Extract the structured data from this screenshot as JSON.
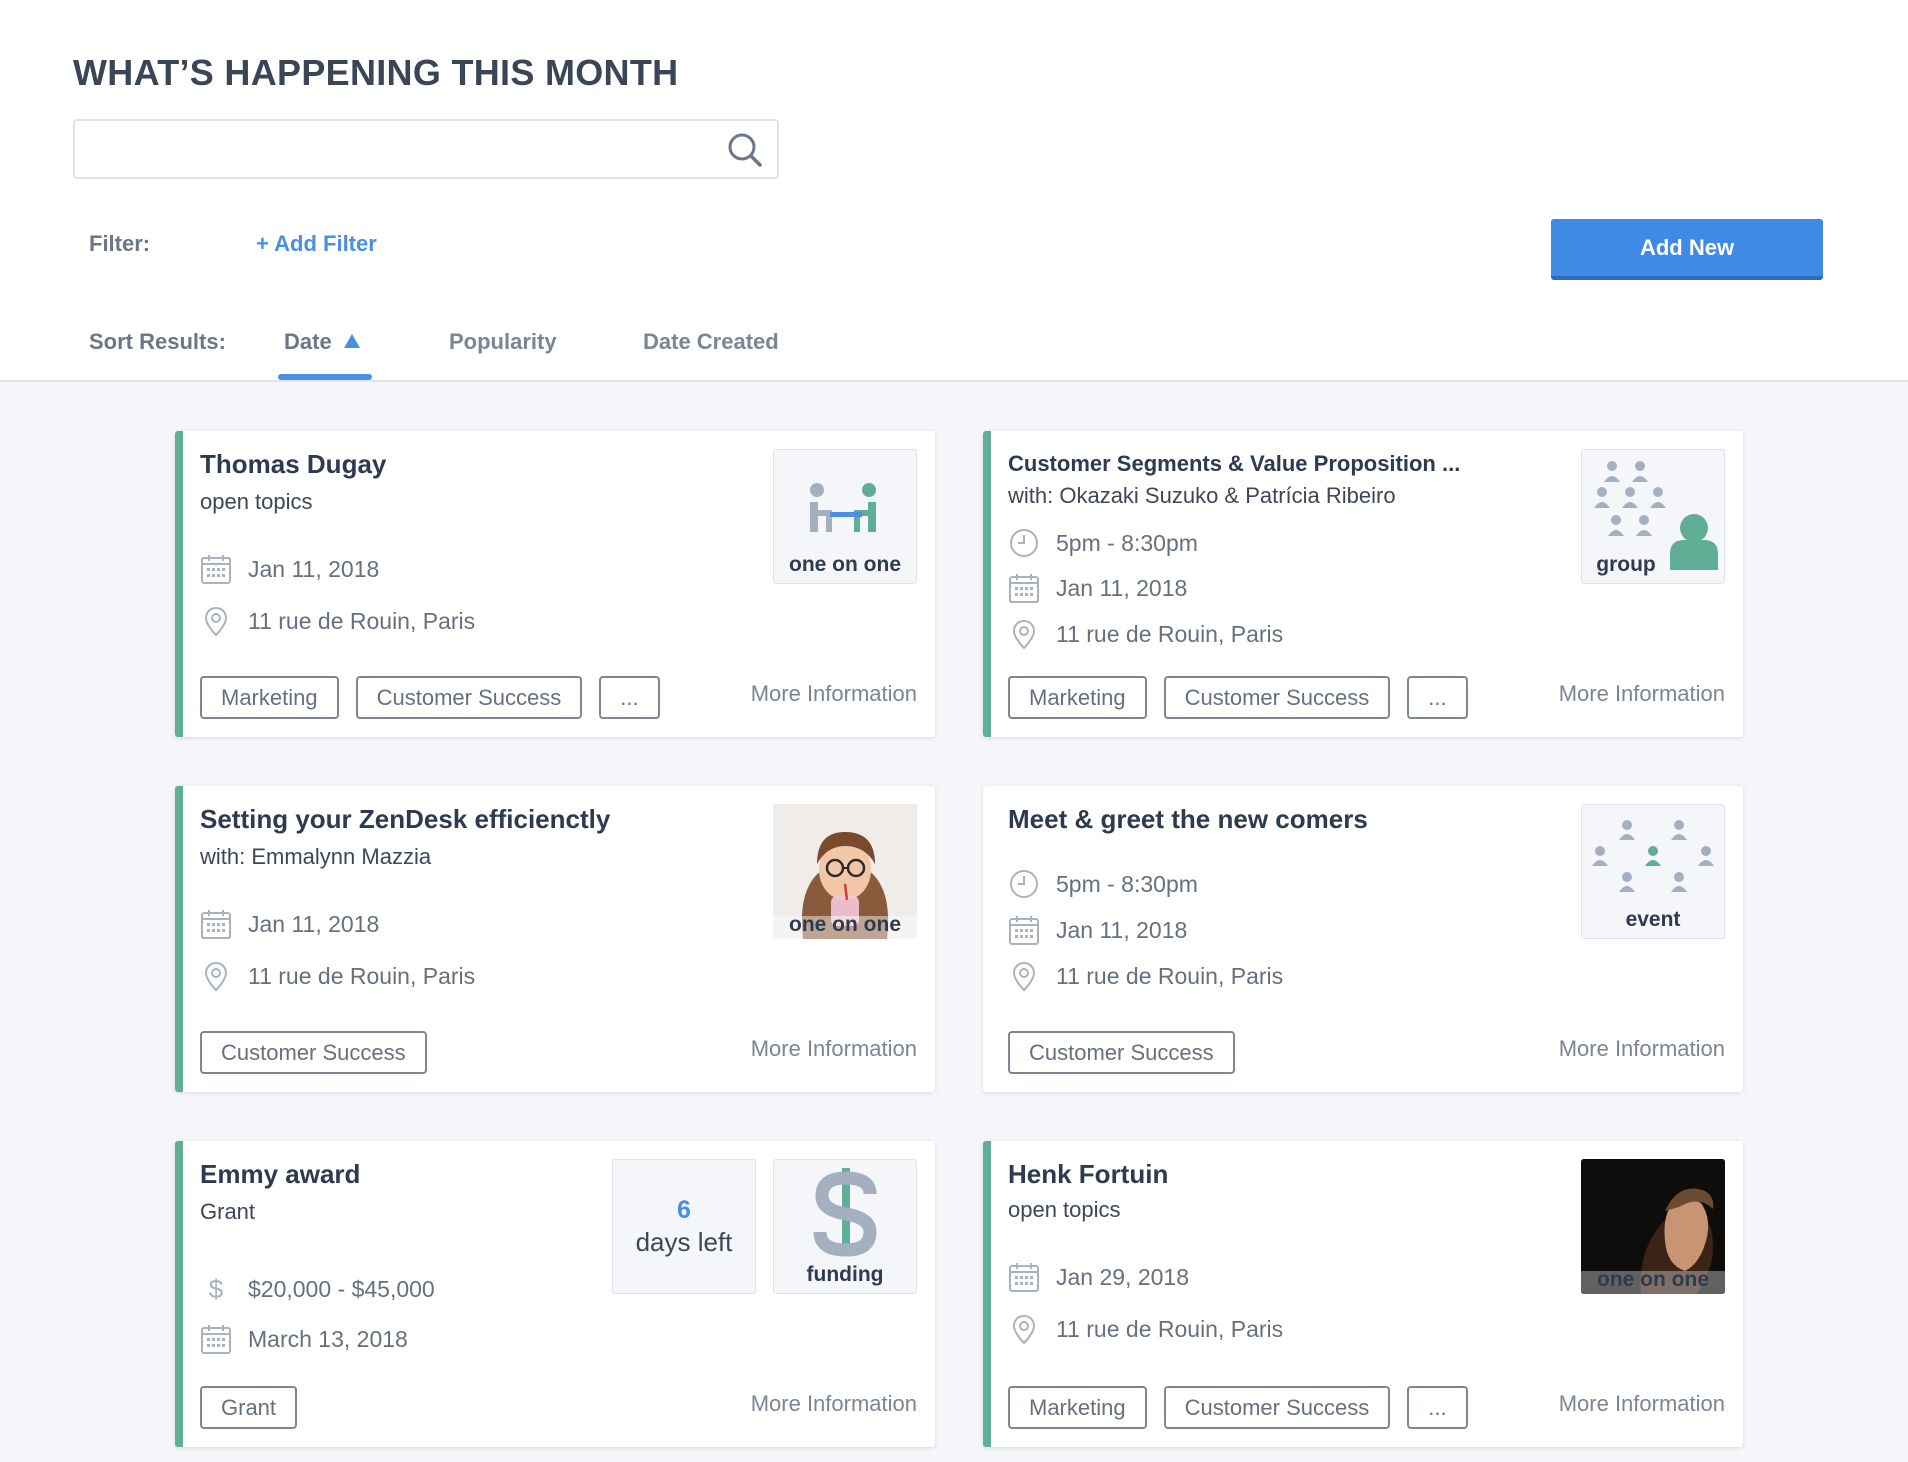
{
  "header": {
    "title": "WHAT’S HAPPENING THIS MONTH",
    "search_placeholder": "",
    "filter_label": "Filter:",
    "add_filter": "+ Add Filter",
    "add_new": "Add New",
    "sort_label": "Sort Results:",
    "sort_tabs": [
      "Date",
      "Popularity",
      "Date Created"
    ],
    "active_sort": "Date"
  },
  "colors": {
    "accent": "#5fae95",
    "primary": "#3f8ae4"
  },
  "cards": [
    {
      "title": "Thomas Dugay",
      "subtitle": "open topics",
      "date": "Jan 11,  2018",
      "location": "11 rue de Rouin, Paris",
      "badge": "one on one",
      "tags": [
        "Marketing",
        "Customer Success",
        "..."
      ],
      "more": "More Information"
    },
    {
      "title": "Customer Segments & Value Proposition ...",
      "subtitle": "with: Okazaki Suzuko & Patrícia Ribeiro",
      "time": "5pm - 8:30pm",
      "date": "Jan 11,  2018",
      "location": "11 rue de Rouin, Paris",
      "badge": "group",
      "tags": [
        "Marketing",
        "Customer Success",
        "..."
      ],
      "more": "More Information"
    },
    {
      "title": "Setting your ZenDesk efficienctly",
      "subtitle": "with: Emmalynn Mazzia",
      "date": "Jan 11,  2018",
      "location": "11 rue de Rouin, Paris",
      "badge": "one on one",
      "tags": [
        "Customer Success"
      ],
      "more": "More Information"
    },
    {
      "title": "Meet & greet the new comers",
      "time": "5pm - 8:30pm",
      "date": "Jan 11,  2018",
      "location": "11 rue de Rouin, Paris",
      "badge": "event",
      "tags": [
        "Customer Success"
      ],
      "more": "More Information"
    },
    {
      "title": "Emmy award",
      "subtitle": "Grant",
      "amount": "$20,000 - $45,000",
      "date": "March 13,  2018",
      "days_num": "6",
      "days_text": "days left",
      "badge": "funding",
      "tags": [
        "Grant"
      ],
      "more": "More Information"
    },
    {
      "title": "Henk Fortuin",
      "subtitle": "open topics",
      "date": "Jan 29,  2018",
      "location": "11 rue de Rouin, Paris",
      "badge": "one on one",
      "tags": [
        "Marketing",
        "Customer Success",
        "..."
      ],
      "more": "More Information"
    }
  ]
}
